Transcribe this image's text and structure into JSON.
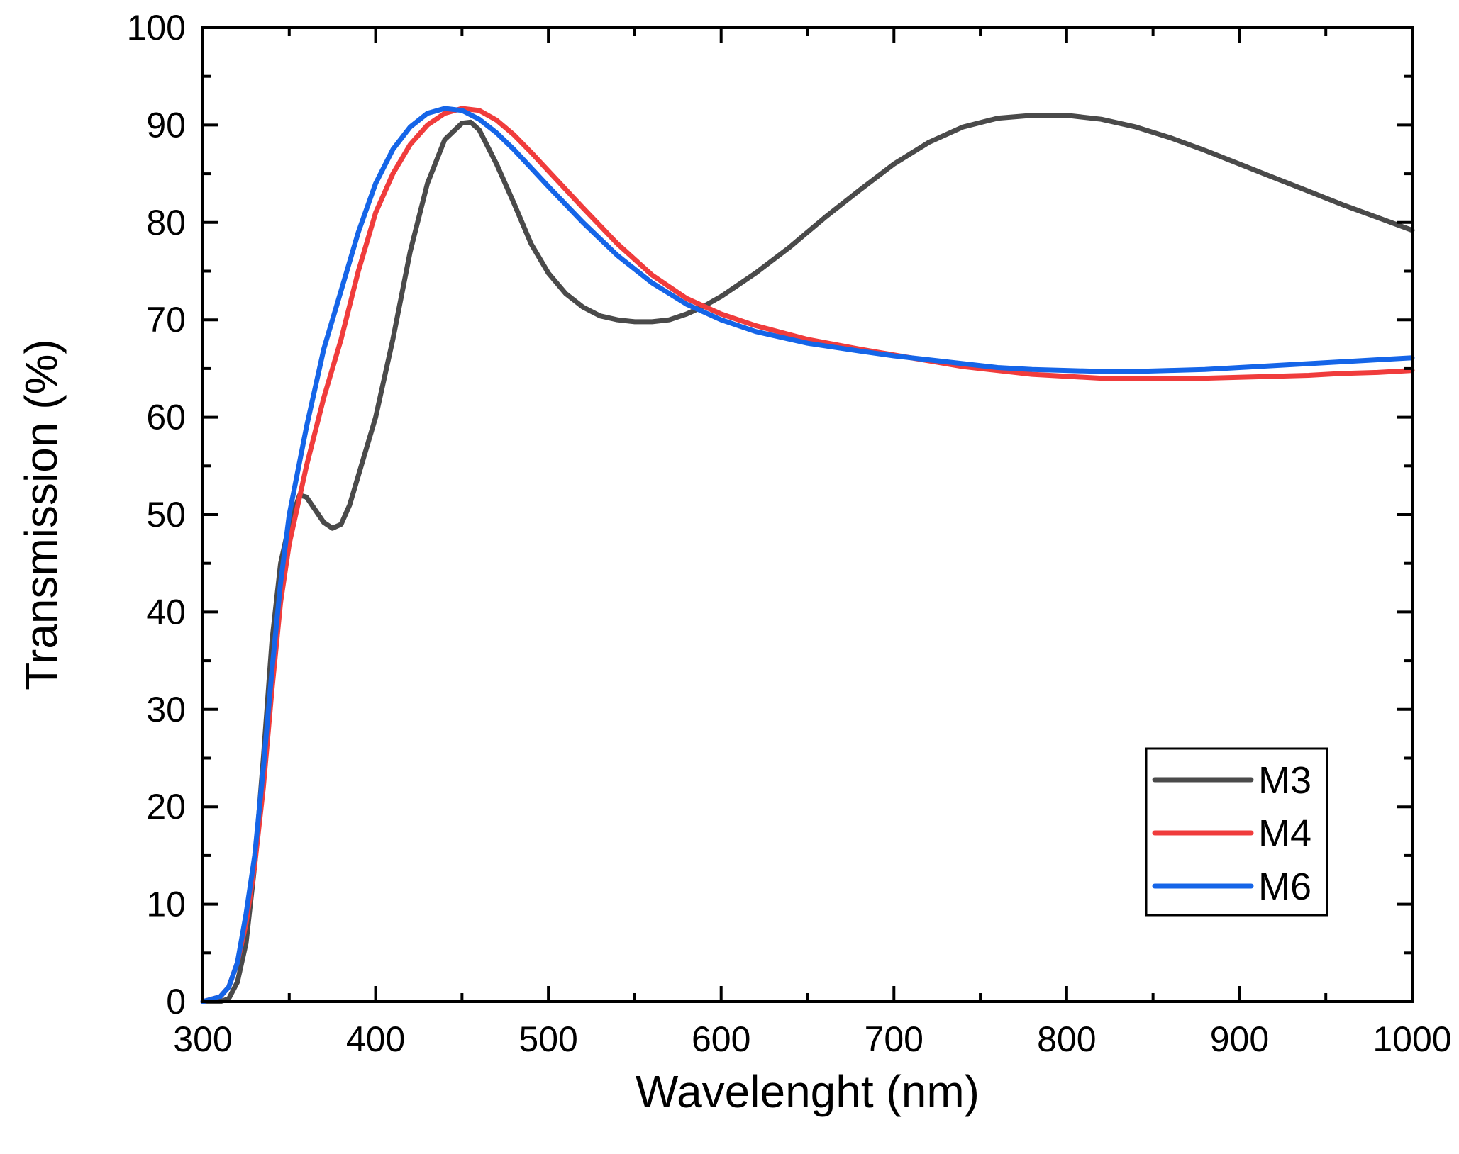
{
  "chart_data": {
    "type": "line",
    "title": "",
    "xlabel": "Wavelenght (nm)",
    "ylabel": "Transmission (%)",
    "xlim": [
      300,
      1000
    ],
    "ylim": [
      0,
      100
    ],
    "xticks": [
      300,
      400,
      500,
      600,
      700,
      800,
      900,
      1000
    ],
    "yticks": [
      0,
      10,
      20,
      30,
      40,
      50,
      60,
      70,
      80,
      90,
      100
    ],
    "x_minor_step": 50,
    "y_minor_step": 5,
    "grid": false,
    "legend_position": "bottom-right",
    "series": [
      {
        "name": "M3",
        "color": "#4a4a4a",
        "points": [
          [
            300,
            0
          ],
          [
            310,
            0
          ],
          [
            315,
            0.3
          ],
          [
            320,
            2
          ],
          [
            325,
            6
          ],
          [
            330,
            14
          ],
          [
            335,
            25
          ],
          [
            340,
            37
          ],
          [
            345,
            45
          ],
          [
            350,
            49
          ],
          [
            356,
            52
          ],
          [
            360,
            51.8
          ],
          [
            365,
            50.5
          ],
          [
            370,
            49.2
          ],
          [
            375,
            48.6
          ],
          [
            380,
            49
          ],
          [
            385,
            51
          ],
          [
            390,
            54
          ],
          [
            400,
            60
          ],
          [
            410,
            68
          ],
          [
            420,
            77
          ],
          [
            430,
            84
          ],
          [
            440,
            88.5
          ],
          [
            450,
            90.2
          ],
          [
            455,
            90.3
          ],
          [
            460,
            89.5
          ],
          [
            470,
            86
          ],
          [
            480,
            82
          ],
          [
            490,
            77.8
          ],
          [
            500,
            74.8
          ],
          [
            510,
            72.7
          ],
          [
            520,
            71.3
          ],
          [
            530,
            70.4
          ],
          [
            540,
            70
          ],
          [
            550,
            69.8
          ],
          [
            560,
            69.8
          ],
          [
            570,
            70
          ],
          [
            580,
            70.6
          ],
          [
            590,
            71.4
          ],
          [
            600,
            72.4
          ],
          [
            620,
            74.8
          ],
          [
            640,
            77.5
          ],
          [
            660,
            80.5
          ],
          [
            680,
            83.3
          ],
          [
            700,
            86
          ],
          [
            720,
            88.2
          ],
          [
            740,
            89.8
          ],
          [
            760,
            90.7
          ],
          [
            780,
            91
          ],
          [
            800,
            91
          ],
          [
            820,
            90.6
          ],
          [
            840,
            89.8
          ],
          [
            860,
            88.7
          ],
          [
            880,
            87.4
          ],
          [
            900,
            86
          ],
          [
            920,
            84.6
          ],
          [
            940,
            83.2
          ],
          [
            960,
            81.8
          ],
          [
            980,
            80.5
          ],
          [
            1000,
            79.2
          ]
        ]
      },
      {
        "name": "M4",
        "color": "#f03c3c",
        "points": [
          [
            300,
            0
          ],
          [
            310,
            0.5
          ],
          [
            315,
            1.5
          ],
          [
            320,
            4
          ],
          [
            325,
            8
          ],
          [
            330,
            14
          ],
          [
            335,
            22
          ],
          [
            340,
            32
          ],
          [
            345,
            41
          ],
          [
            350,
            47
          ],
          [
            360,
            55
          ],
          [
            370,
            62
          ],
          [
            380,
            68
          ],
          [
            390,
            75
          ],
          [
            400,
            81
          ],
          [
            410,
            85
          ],
          [
            420,
            88
          ],
          [
            430,
            90
          ],
          [
            440,
            91.2
          ],
          [
            450,
            91.7
          ],
          [
            460,
            91.5
          ],
          [
            470,
            90.5
          ],
          [
            480,
            89
          ],
          [
            490,
            87.2
          ],
          [
            500,
            85.3
          ],
          [
            520,
            81.5
          ],
          [
            540,
            77.8
          ],
          [
            560,
            74.6
          ],
          [
            580,
            72.2
          ],
          [
            600,
            70.6
          ],
          [
            620,
            69.4
          ],
          [
            650,
            68
          ],
          [
            680,
            67
          ],
          [
            700,
            66.4
          ],
          [
            720,
            65.8
          ],
          [
            740,
            65.2
          ],
          [
            760,
            64.8
          ],
          [
            780,
            64.4
          ],
          [
            800,
            64.2
          ],
          [
            820,
            64
          ],
          [
            840,
            64
          ],
          [
            860,
            64
          ],
          [
            880,
            64
          ],
          [
            900,
            64.1
          ],
          [
            920,
            64.2
          ],
          [
            940,
            64.3
          ],
          [
            960,
            64.5
          ],
          [
            980,
            64.6
          ],
          [
            1000,
            64.8
          ]
        ]
      },
      {
        "name": "M6",
        "color": "#1565e8",
        "points": [
          [
            300,
            0
          ],
          [
            310,
            0.5
          ],
          [
            315,
            1.5
          ],
          [
            320,
            4
          ],
          [
            325,
            9
          ],
          [
            330,
            15
          ],
          [
            335,
            24
          ],
          [
            340,
            34
          ],
          [
            345,
            43
          ],
          [
            350,
            50
          ],
          [
            360,
            59
          ],
          [
            370,
            67
          ],
          [
            380,
            73
          ],
          [
            390,
            79
          ],
          [
            400,
            84
          ],
          [
            410,
            87.5
          ],
          [
            420,
            89.8
          ],
          [
            430,
            91.2
          ],
          [
            440,
            91.7
          ],
          [
            450,
            91.5
          ],
          [
            460,
            90.6
          ],
          [
            470,
            89.2
          ],
          [
            480,
            87.5
          ],
          [
            490,
            85.6
          ],
          [
            500,
            83.7
          ],
          [
            520,
            80
          ],
          [
            540,
            76.6
          ],
          [
            560,
            73.8
          ],
          [
            580,
            71.6
          ],
          [
            600,
            70
          ],
          [
            620,
            68.8
          ],
          [
            650,
            67.6
          ],
          [
            680,
            66.8
          ],
          [
            700,
            66.3
          ],
          [
            720,
            65.9
          ],
          [
            740,
            65.5
          ],
          [
            760,
            65.1
          ],
          [
            780,
            64.9
          ],
          [
            800,
            64.8
          ],
          [
            820,
            64.7
          ],
          [
            840,
            64.7
          ],
          [
            860,
            64.8
          ],
          [
            880,
            64.9
          ],
          [
            900,
            65.1
          ],
          [
            920,
            65.3
          ],
          [
            940,
            65.5
          ],
          [
            960,
            65.7
          ],
          [
            980,
            65.9
          ],
          [
            1000,
            66.1
          ]
        ]
      }
    ]
  }
}
